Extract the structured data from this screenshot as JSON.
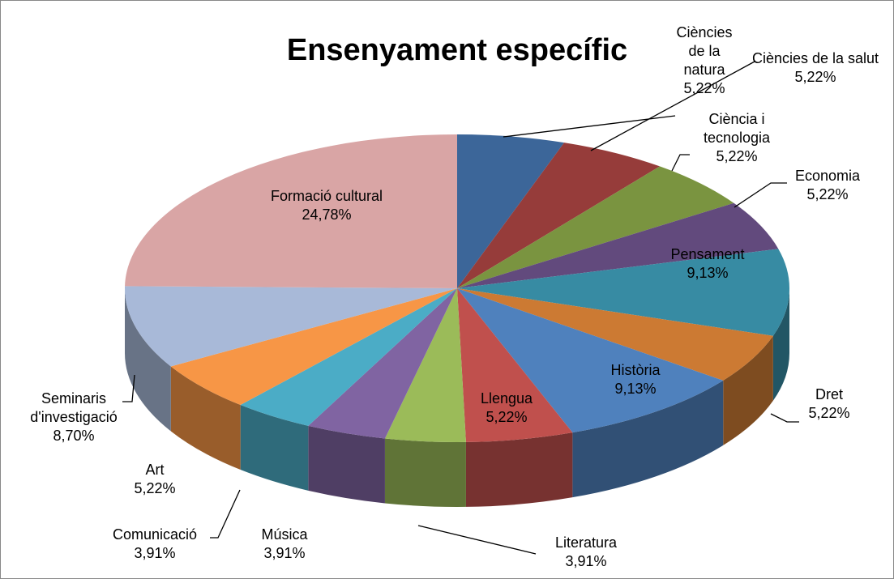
{
  "chart_data": {
    "type": "pie3d",
    "title": "Ensenyament específic",
    "categories": [
      "Ciències de la natura",
      "Ciències de la salut",
      "Ciència i tecnologia",
      "Economia",
      "Pensament",
      "Dret",
      "Història",
      "Llengua",
      "Literatura",
      "Música",
      "Comunicació",
      "Art",
      "Seminaris d'investigació",
      "Formació cultural"
    ],
    "values": [
      5.22,
      5.22,
      5.22,
      5.22,
      9.13,
      5.22,
      9.13,
      5.22,
      3.91,
      3.91,
      3.91,
      5.22,
      8.7,
      24.78
    ],
    "value_labels": [
      "5,22%",
      "5,22%",
      "5,22%",
      "5,22%",
      "9,13%",
      "5,22%",
      "9,13%",
      "5,22%",
      "3,91%",
      "3,91%",
      "3,91%",
      "5,22%",
      "8,70%",
      "24,78%"
    ],
    "colors": [
      "#3c6699",
      "#963c3a",
      "#7a9440",
      "#624a7d",
      "#378ba3",
      "#cc7a33",
      "#4f81bd",
      "#c0504d",
      "#9bbb59",
      "#8064a2",
      "#4bacc6",
      "#f79646",
      "#a8b9d8",
      "#d9a5a5"
    ]
  }
}
